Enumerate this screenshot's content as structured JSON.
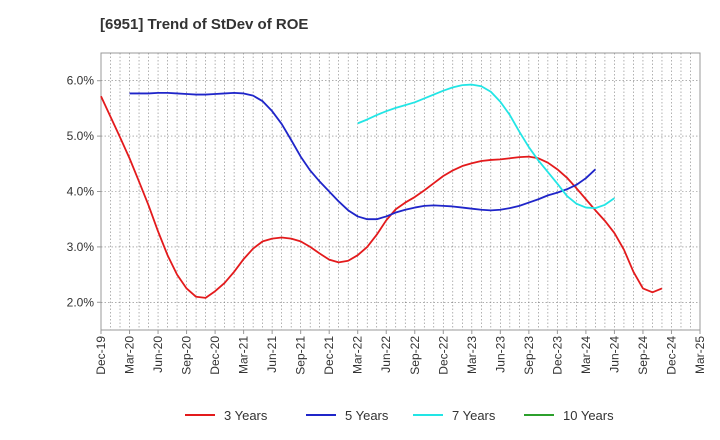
{
  "chart_data": {
    "type": "line",
    "title": "[6951]  Trend of StDev of ROE",
    "xlabel": "",
    "ylabel": "",
    "x_ticks": [
      "Dec-19",
      "Mar-20",
      "Jun-20",
      "Sep-20",
      "Dec-20",
      "Mar-21",
      "Jun-21",
      "Sep-21",
      "Dec-21",
      "Mar-22",
      "Jun-22",
      "Sep-22",
      "Dec-22",
      "Mar-23",
      "Jun-23",
      "Sep-23",
      "Dec-23",
      "Mar-24",
      "Jun-24",
      "Sep-24",
      "Dec-24",
      "Mar-25"
    ],
    "y_ticks": [
      "2.0%",
      "3.0%",
      "4.0%",
      "5.0%",
      "6.0%"
    ],
    "y_tick_values": [
      2.0,
      3.0,
      4.0,
      5.0,
      6.0
    ],
    "ylim": [
      1.5,
      6.5
    ],
    "grid": true,
    "legend_position": "bottom",
    "series": [
      {
        "name": "3 Years",
        "color": "#e31a1c",
        "start_index": 0,
        "values": [
          5.72,
          5.35,
          4.98,
          4.6,
          4.18,
          3.75,
          3.28,
          2.85,
          2.5,
          2.25,
          2.1,
          2.08,
          2.2,
          2.35,
          2.55,
          2.78,
          2.97,
          3.1,
          3.15,
          3.17,
          3.15,
          3.1,
          3.0,
          2.88,
          2.77,
          2.72,
          2.75,
          2.85,
          3.0,
          3.22,
          3.48,
          3.68,
          3.8,
          3.9,
          4.02,
          4.15,
          4.28,
          4.38,
          4.46,
          4.51,
          4.55,
          4.57,
          4.58,
          4.6,
          4.62,
          4.63,
          4.6,
          4.52,
          4.4,
          4.25,
          4.06,
          3.86,
          3.66,
          3.47,
          3.25,
          2.95,
          2.55,
          2.25,
          2.18,
          2.25
        ]
      },
      {
        "name": "5 Years",
        "color": "#1f25c9",
        "start_index": 3,
        "values": [
          5.77,
          5.77,
          5.77,
          5.78,
          5.78,
          5.77,
          5.76,
          5.75,
          5.75,
          5.76,
          5.77,
          5.78,
          5.77,
          5.73,
          5.63,
          5.45,
          5.22,
          4.93,
          4.63,
          4.38,
          4.18,
          4.0,
          3.82,
          3.66,
          3.55,
          3.5,
          3.5,
          3.55,
          3.62,
          3.67,
          3.71,
          3.74,
          3.75,
          3.74,
          3.73,
          3.71,
          3.69,
          3.67,
          3.66,
          3.67,
          3.7,
          3.74,
          3.8,
          3.86,
          3.93,
          3.98,
          4.04,
          4.12,
          4.24,
          4.4
        ]
      },
      {
        "name": "7 Years",
        "color": "#22e5e5",
        "start_index": 27,
        "values": [
          5.23,
          5.3,
          5.38,
          5.45,
          5.51,
          5.56,
          5.61,
          5.68,
          5.75,
          5.82,
          5.88,
          5.92,
          5.93,
          5.9,
          5.8,
          5.62,
          5.38,
          5.08,
          4.8,
          4.56,
          4.35,
          4.14,
          3.92,
          3.78,
          3.71,
          3.7,
          3.76,
          3.88
        ]
      },
      {
        "name": "10 Years",
        "color": "#2ca02c",
        "start_index": 0,
        "values": []
      }
    ]
  }
}
